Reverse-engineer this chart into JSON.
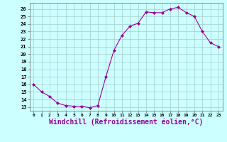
{
  "x": [
    0,
    1,
    2,
    3,
    4,
    5,
    6,
    7,
    8,
    9,
    10,
    11,
    12,
    13,
    14,
    15,
    16,
    17,
    18,
    19,
    20,
    21,
    22,
    23
  ],
  "y": [
    16.0,
    15.0,
    14.4,
    13.5,
    13.2,
    13.1,
    13.1,
    12.9,
    13.2,
    17.0,
    20.5,
    22.5,
    23.7,
    24.1,
    25.6,
    25.5,
    25.5,
    26.0,
    26.2,
    25.5,
    25.0,
    23.0,
    21.5,
    21.0
  ],
  "line_color": "#990099",
  "marker": "D",
  "marker_size": 2.0,
  "bg_color": "#ccffff",
  "grid_color": "#aacccc",
  "xlabel": "Windchill (Refroidissement éolien,°C)",
  "xlabel_fontsize": 7,
  "xtick_labels": [
    "0",
    "1",
    "2",
    "3",
    "4",
    "5",
    "6",
    "7",
    "8",
    "9",
    "10",
    "11",
    "12",
    "13",
    "14",
    "15",
    "16",
    "17",
    "18",
    "19",
    "20",
    "21",
    "22",
    "23"
  ],
  "ytick_min": 13,
  "ytick_max": 26,
  "ytick_step": 1,
  "xlim": [
    -0.5,
    23.5
  ],
  "ylim": [
    12.5,
    26.8
  ]
}
